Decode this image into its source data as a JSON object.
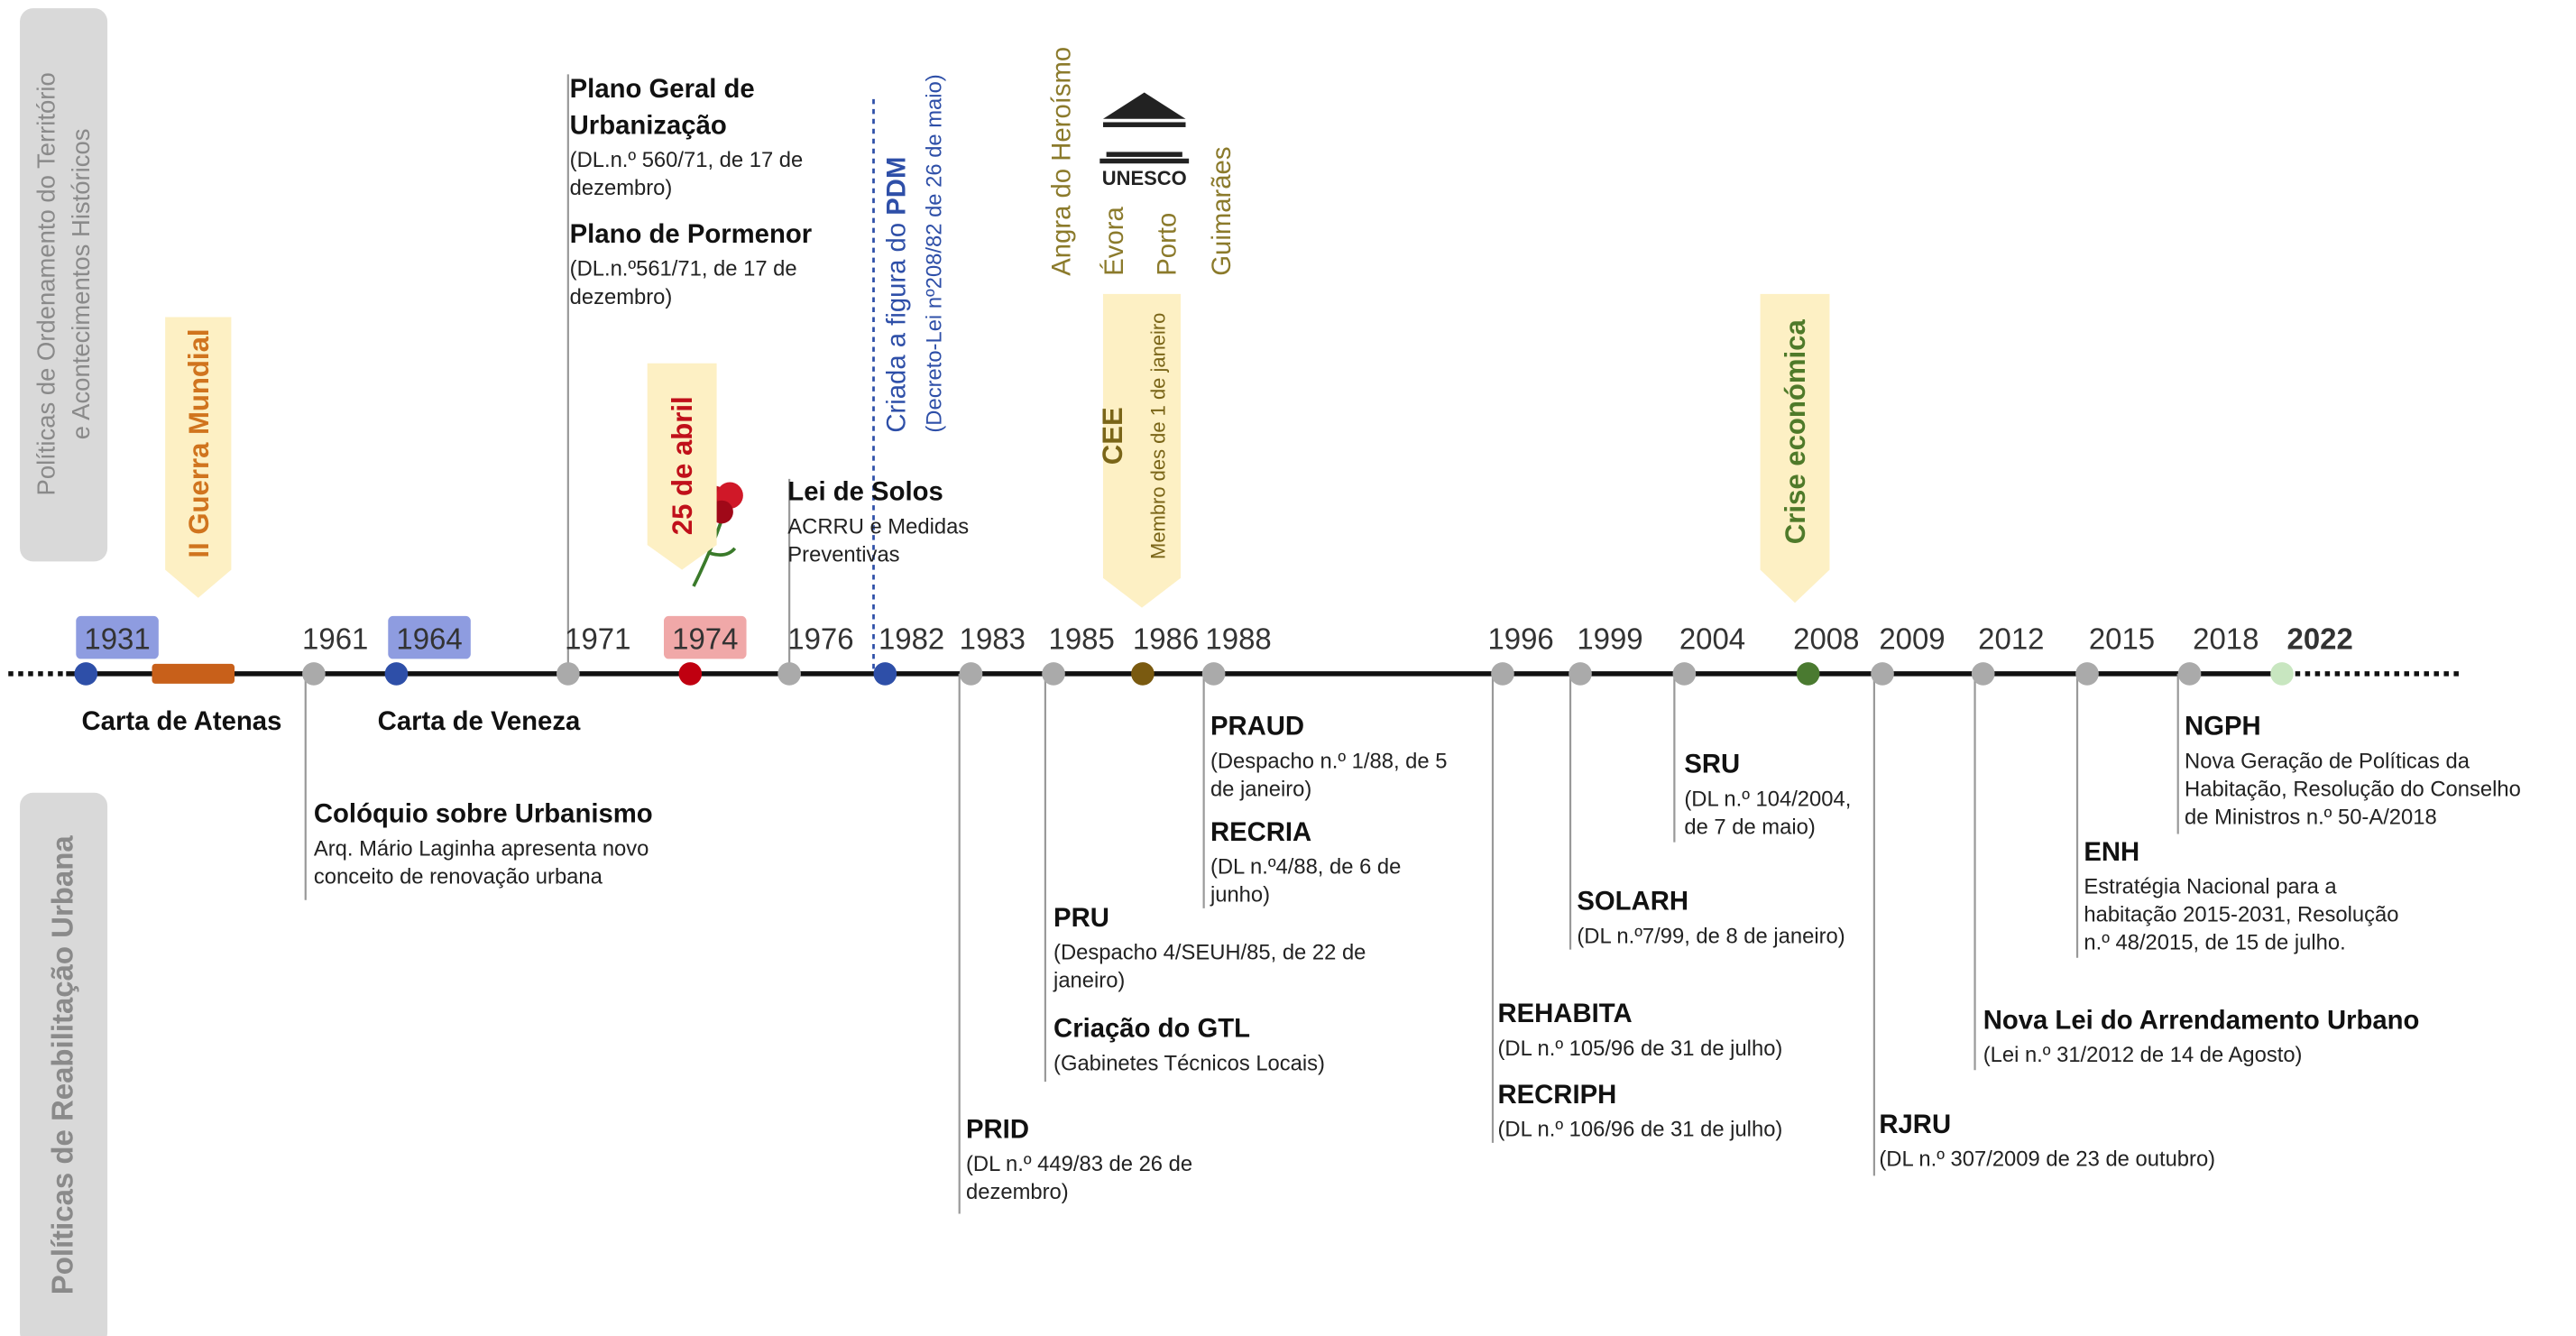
{
  "side_labels": {
    "top": [
      "Políticas de Ordenamento do Território",
      "e Acontecimentos Históricos"
    ],
    "bottom": "Políticas de Reabilitação Urbana"
  },
  "years": [
    "1931",
    "1961",
    "1964",
    "1971",
    "1974",
    "1976",
    "1982",
    "1983",
    "1985",
    "1986",
    "1988",
    "1996",
    "1999",
    "2004",
    "2008",
    "2009",
    "2012",
    "2015",
    "2018",
    "2022"
  ],
  "charters": [
    "Carta de Atenas",
    "Carta de Veneza"
  ],
  "banners": [
    {
      "text": "II Guerra Mundial"
    },
    {
      "text": "25 de abril"
    },
    {
      "text": "CEE",
      "sub": "Membro des de 1 de janeiro"
    },
    {
      "text": "Crise económica"
    }
  ],
  "pdm": {
    "text": "Criada a figura do ",
    "emphasis": "PDM",
    "law": "(Decreto-Lei nº208/82 de 26 de maio)"
  },
  "unesco": {
    "logo": "UNESCO",
    "cities": [
      "Angra do Heroísmo",
      "Évora",
      "Porto",
      "Guimarães"
    ]
  },
  "events": [
    {
      "title": [
        "Plano Geral de",
        "Urbanização"
      ],
      "details": [
        "(DL.n.º 560/71, de 17 de",
        "dezembro)"
      ]
    },
    {
      "title": [
        "Plano de Pormenor"
      ],
      "details": [
        "(DL.n.º561/71, de 17 de",
        "dezembro)"
      ]
    },
    {
      "title": [
        "Lei de Solos"
      ],
      "details": [
        "ACRRU e Medidas",
        "Preventivas"
      ]
    },
    {
      "title": [
        "Colóquio sobre Urbanismo"
      ],
      "details": [
        "Arq. Mário Laginha apresenta novo",
        "conceito de renovação urbana"
      ]
    },
    {
      "title": [
        "PRID"
      ],
      "details": [
        "(DL n.º 449/83 de 26 de",
        "dezembro)"
      ]
    },
    {
      "title": [
        "PRU"
      ],
      "details": [
        "(Despacho 4/SEUH/85, de 22 de",
        "janeiro)"
      ]
    },
    {
      "title": [
        "Criação do GTL"
      ],
      "details": [
        "(Gabinetes Técnicos Locais)"
      ]
    },
    {
      "title": [
        "PRAUD"
      ],
      "details": [
        "(Despacho n.º 1/88, de 5",
        "de janeiro)"
      ]
    },
    {
      "title": [
        "RECRIA"
      ],
      "details": [
        "(DL n.º4/88, de 6 de",
        "junho)"
      ]
    },
    {
      "title": [
        "REHABITA"
      ],
      "details": [
        "(DL n.º 105/96 de 31 de julho)"
      ]
    },
    {
      "title": [
        "RECRIPH"
      ],
      "details": [
        "(DL n.º 106/96 de 31 de julho)"
      ]
    },
    {
      "title": [
        "SOLARH"
      ],
      "details": [
        "(DL n.º7/99, de 8 de janeiro)"
      ]
    },
    {
      "title": [
        "SRU"
      ],
      "details": [
        "(DL n.º 104/2004,",
        "de 7 de maio)"
      ]
    },
    {
      "title": [
        "RJRU"
      ],
      "details": [
        "(DL n.º 307/2009 de 23 de outubro)"
      ]
    },
    {
      "title": [
        "Nova Lei do Arrendamento Urbano"
      ],
      "details": [
        "(Lei n.º 31/2012 de 14 de Agosto)"
      ]
    },
    {
      "title": [
        "ENH"
      ],
      "details": [
        "Estratégia Nacional para a",
        "habitação 2015-2031, Resolução",
        "n.º 48/2015, de 15 de julho."
      ]
    },
    {
      "title": [
        "NGPH"
      ],
      "details": [
        "Nova Geração de Políticas da",
        "Habitação, Resolução do Conselho",
        "de Ministros n.º 50-A/2018"
      ]
    }
  ]
}
